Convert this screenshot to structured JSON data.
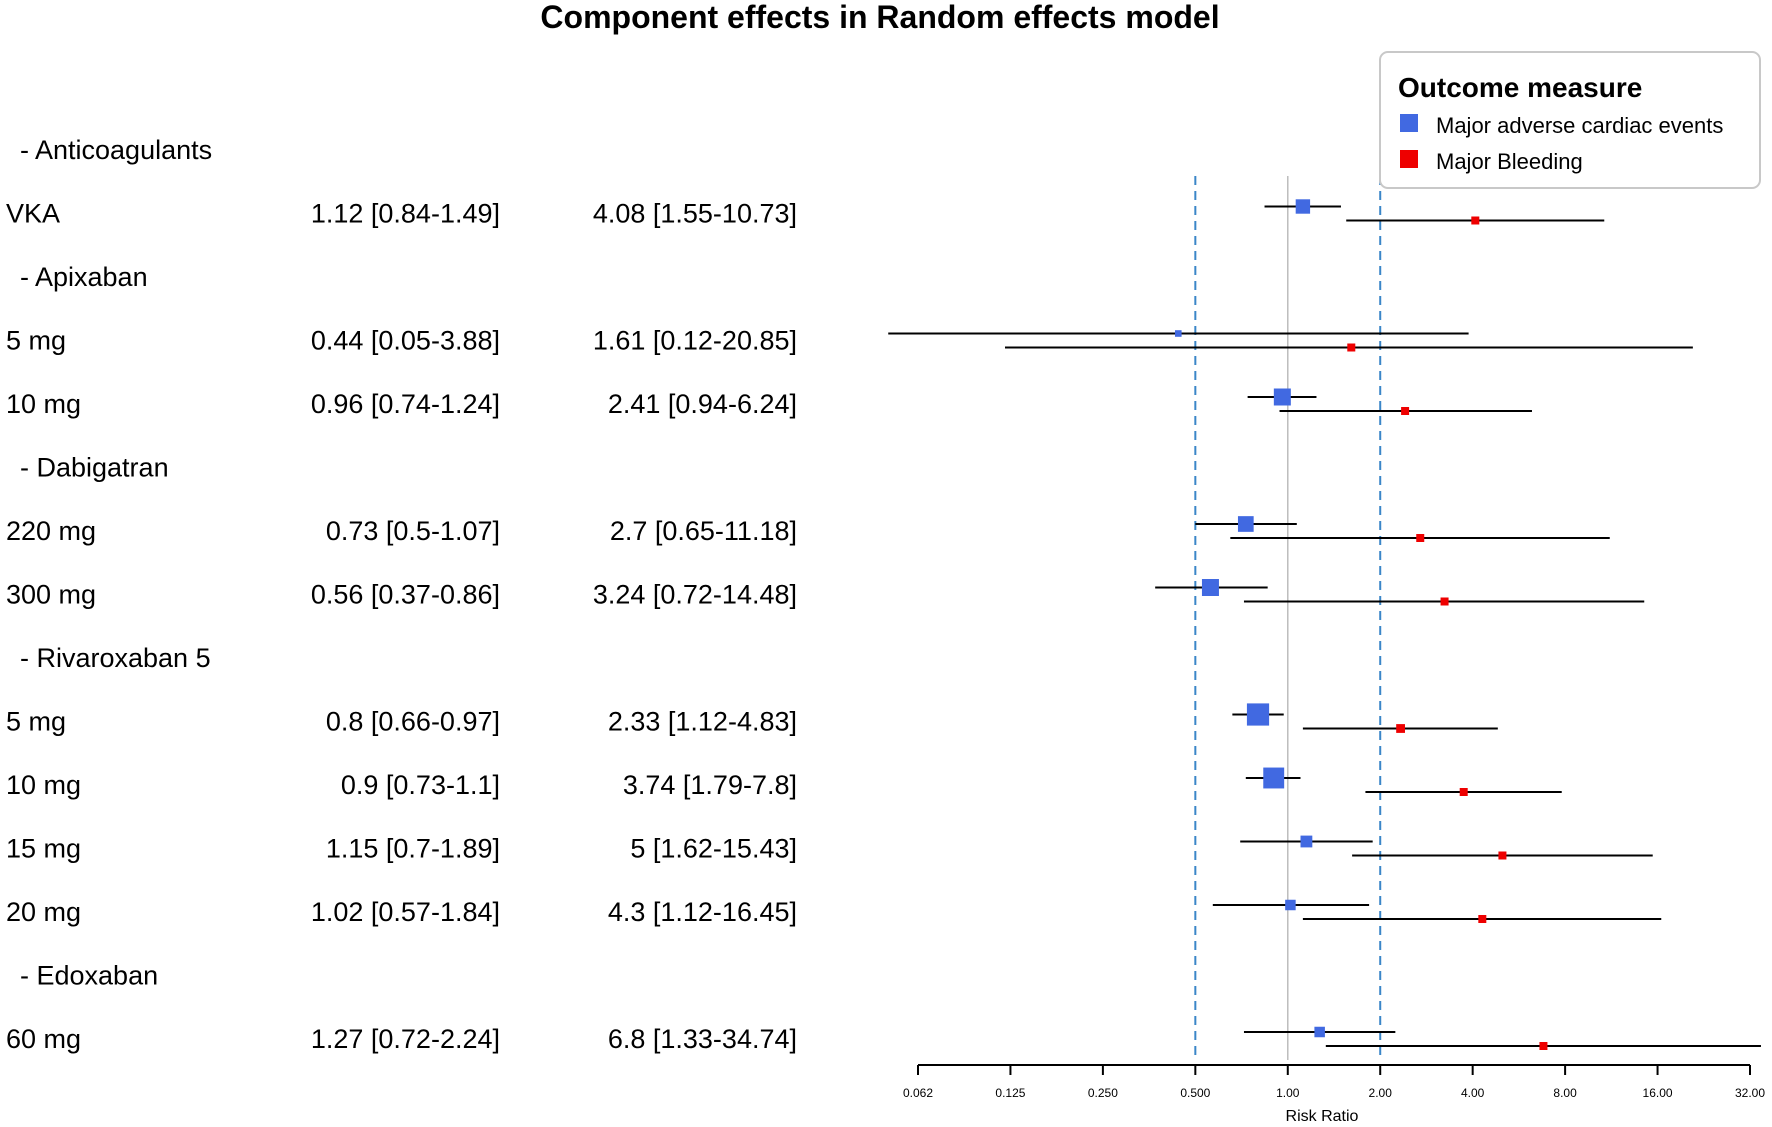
{
  "chart_data": {
    "type": "forest",
    "title": "Component effects in Random effects model",
    "xlabel": "Risk Ratio",
    "x_scale": "log2",
    "xlim": [
      0.062,
      32
    ],
    "x_ticks": [
      {
        "value": 0.0625,
        "label": "0.062"
      },
      {
        "value": 0.125,
        "label": "0.125"
      },
      {
        "value": 0.25,
        "label": "0.250"
      },
      {
        "value": 0.5,
        "label": "0.500"
      },
      {
        "value": 1,
        "label": "1.00"
      },
      {
        "value": 2,
        "label": "2.00"
      },
      {
        "value": 4,
        "label": "4.00"
      },
      {
        "value": 8,
        "label": "8.00"
      },
      {
        "value": 16,
        "label": "16.00"
      },
      {
        "value": 32,
        "label": "32.00"
      }
    ],
    "reference_lines": {
      "solid": 1,
      "dashed": [
        0.5,
        2
      ]
    },
    "legend": {
      "title": "Outcome measure",
      "position": "top-right",
      "entries": [
        {
          "label": "Major adverse cardiac events",
          "color": "#4169E1"
        },
        {
          "label": "Major Bleeding",
          "color": "#EE0000"
        }
      ]
    },
    "rows": [
      {
        "label": "- Anticoagulants",
        "header": true
      },
      {
        "label": "VKA",
        "mace_text": "1.12 [0.84-1.49]",
        "bleed_text": "4.08 [1.55-10.73]",
        "mace": {
          "est": 1.12,
          "lo": 0.84,
          "hi": 1.49,
          "weight": 4
        },
        "bleed": {
          "est": 4.08,
          "lo": 1.55,
          "hi": 10.73,
          "weight": 1
        }
      },
      {
        "label": "- Apixaban",
        "header": true
      },
      {
        "label": "5 mg",
        "mace_text": "0.44 [0.05-3.88]",
        "bleed_text": "1.61 [0.12-20.85]",
        "mace": {
          "est": 0.44,
          "lo": 0.05,
          "hi": 3.88,
          "weight": 1
        },
        "bleed": {
          "est": 1.61,
          "lo": 0.12,
          "hi": 20.85,
          "weight": 1
        }
      },
      {
        "label": "10 mg",
        "mace_text": "0.96 [0.74-1.24]",
        "bleed_text": "2.41 [0.94-6.24]",
        "mace": {
          "est": 0.96,
          "lo": 0.74,
          "hi": 1.24,
          "weight": 5
        },
        "bleed": {
          "est": 2.41,
          "lo": 0.94,
          "hi": 6.24,
          "weight": 1
        }
      },
      {
        "label": "- Dabigatran",
        "header": true
      },
      {
        "label": "220 mg",
        "mace_text": "0.73 [0.5-1.07]",
        "bleed_text": "2.7 [0.65-11.18]",
        "mace": {
          "est": 0.73,
          "lo": 0.5,
          "hi": 1.07,
          "weight": 4.5
        },
        "bleed": {
          "est": 2.7,
          "lo": 0.65,
          "hi": 11.18,
          "weight": 1
        }
      },
      {
        "label": "300 mg",
        "mace_text": "0.56 [0.37-0.86]",
        "bleed_text": "3.24 [0.72-14.48]",
        "mace": {
          "est": 0.56,
          "lo": 0.37,
          "hi": 0.86,
          "weight": 5
        },
        "bleed": {
          "est": 3.24,
          "lo": 0.72,
          "hi": 14.48,
          "weight": 1
        }
      },
      {
        "label": "- Rivaroxaban 5",
        "header": true
      },
      {
        "label": "5 mg",
        "mace_text": "0.8 [0.66-0.97]",
        "bleed_text": "2.33 [1.12-4.83]",
        "mace": {
          "est": 0.8,
          "lo": 0.66,
          "hi": 0.97,
          "weight": 7
        },
        "bleed": {
          "est": 2.33,
          "lo": 1.12,
          "hi": 4.83,
          "weight": 1.2
        }
      },
      {
        "label": "10 mg",
        "mace_text": "0.9 [0.73-1.1]",
        "bleed_text": "3.74 [1.79-7.8]",
        "mace": {
          "est": 0.9,
          "lo": 0.73,
          "hi": 1.1,
          "weight": 6.5
        },
        "bleed": {
          "est": 3.74,
          "lo": 1.79,
          "hi": 7.8,
          "weight": 1
        }
      },
      {
        "label": "15 mg",
        "mace_text": "1.15 [0.7-1.89]",
        "bleed_text": "5 [1.62-15.43]",
        "mace": {
          "est": 1.15,
          "lo": 0.7,
          "hi": 1.89,
          "weight": 3
        },
        "bleed": {
          "est": 5,
          "lo": 1.62,
          "hi": 15.43,
          "weight": 1
        }
      },
      {
        "label": "20 mg",
        "mace_text": "1.02 [0.57-1.84]",
        "bleed_text": "4.3 [1.12-16.45]",
        "mace": {
          "est": 1.02,
          "lo": 0.57,
          "hi": 1.84,
          "weight": 2.5
        },
        "bleed": {
          "est": 4.3,
          "lo": 1.12,
          "hi": 16.45,
          "weight": 1
        }
      },
      {
        "label": "- Edoxaban",
        "header": true
      },
      {
        "label": "60 mg",
        "mace_text": "1.27 [0.72-2.24]",
        "bleed_text": "6.8 [1.33-34.74]",
        "mace": {
          "est": 1.27,
          "lo": 0.72,
          "hi": 2.24,
          "weight": 2.5
        },
        "bleed": {
          "est": 6.8,
          "lo": 1.33,
          "hi": 34.74,
          "weight": 1
        }
      }
    ]
  }
}
